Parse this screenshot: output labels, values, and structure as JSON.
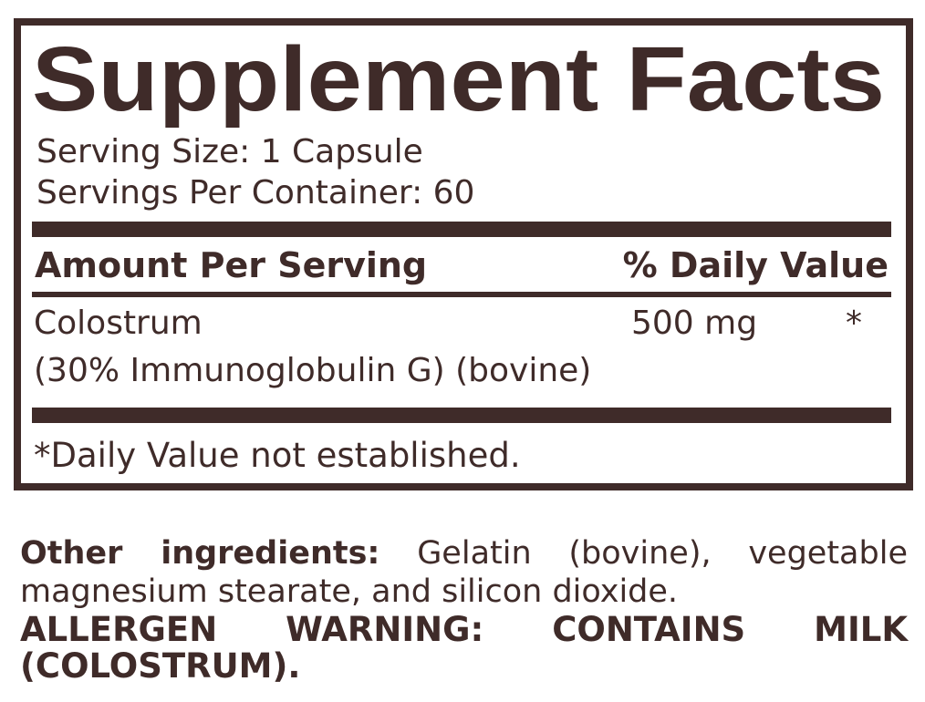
{
  "panel": {
    "title": "Supplement Facts",
    "serving_size": "Serving Size: 1 Capsule",
    "servings_per_container": "Servings Per Container: 60",
    "header_amount": "Amount Per Serving",
    "header_dv": "% Daily Value",
    "rows": [
      {
        "name": "Colostrum",
        "detail": "(30% Immunoglobulin G) (bovine)",
        "amount": "500 mg",
        "dv": "*"
      }
    ],
    "footnote": "*Daily Value not established."
  },
  "other": {
    "label": "Other ingredients:",
    "text_line1": "Gelatin (bovine), vegetable",
    "text_line2": "magnesium stearate, and silicon dioxide.",
    "allergen_line1": "ALLERGEN WARNING: CONTAINS MILK",
    "allergen_line2": "(COLOSTRUM)."
  },
  "colors": {
    "ink": "#3f2b29",
    "background": "#ffffff"
  }
}
